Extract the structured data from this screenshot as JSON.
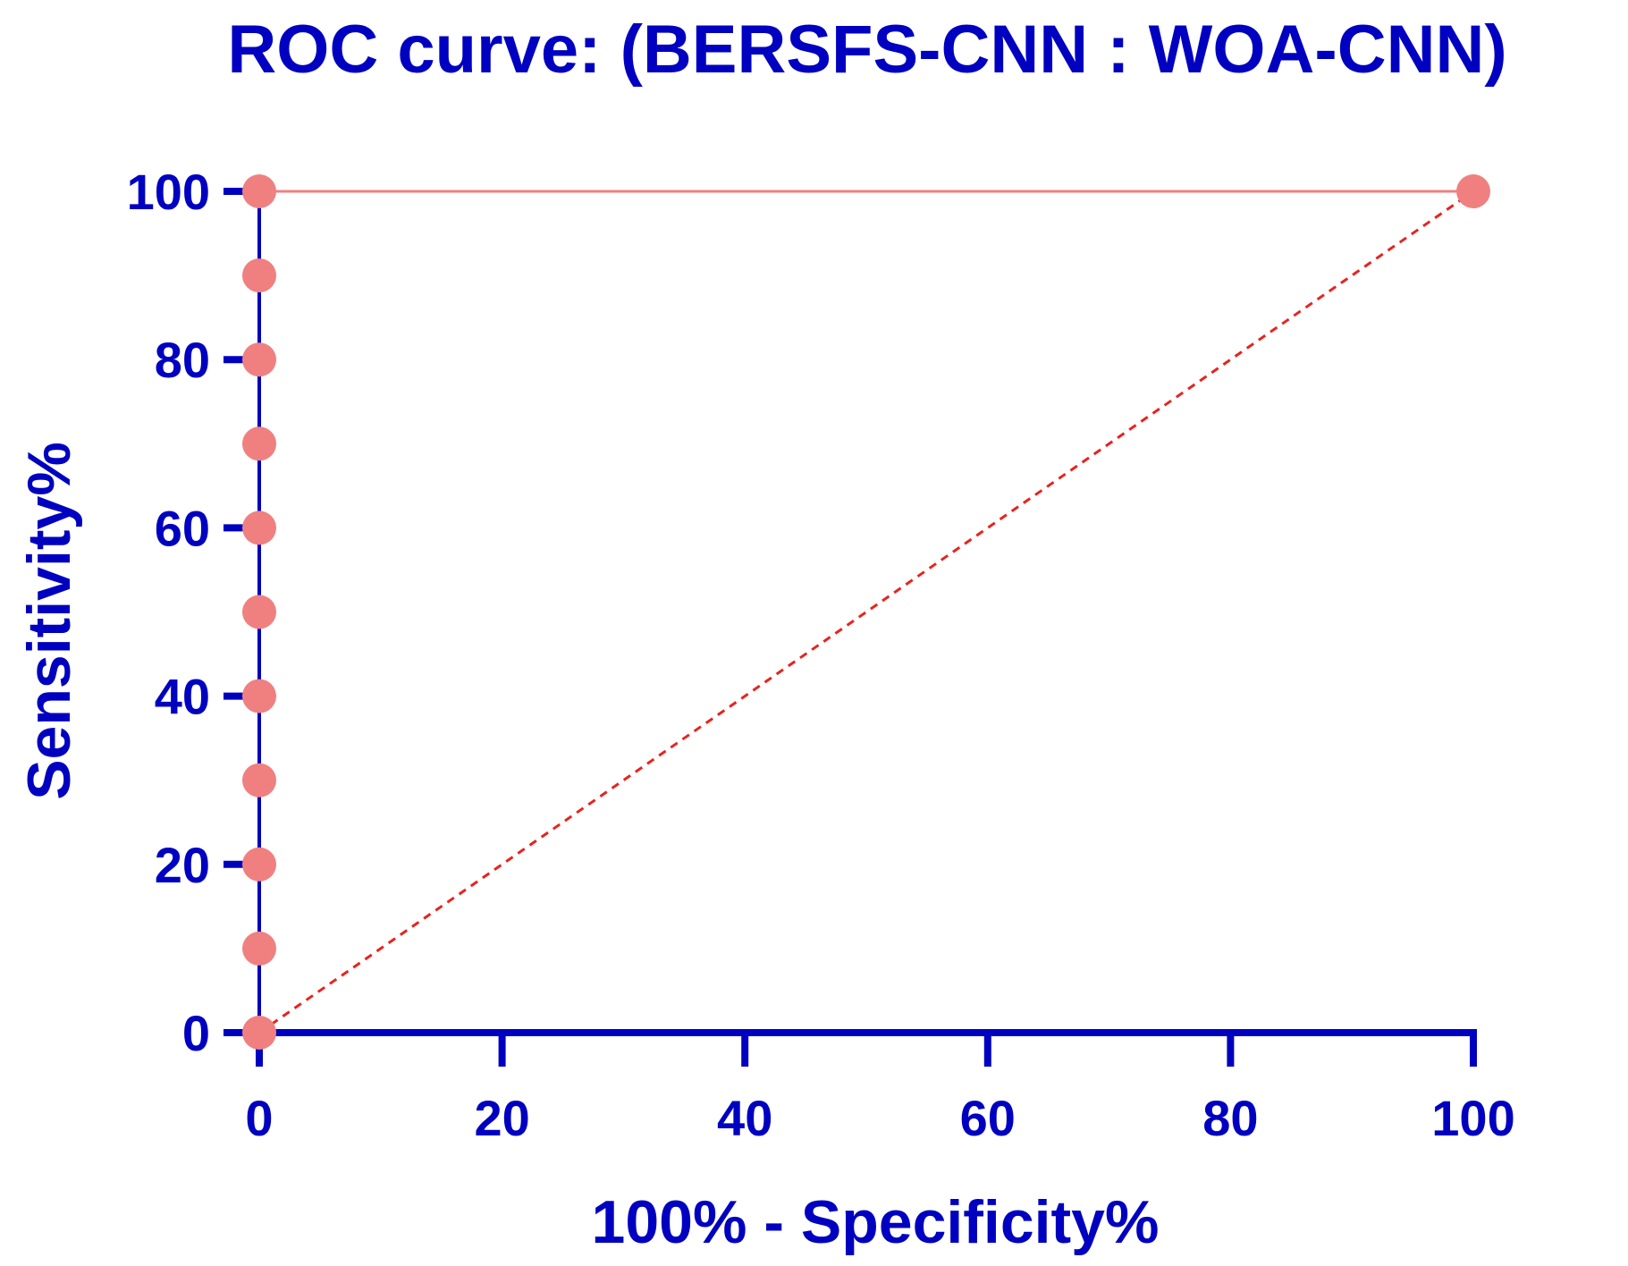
{
  "chart_data": {
    "type": "line",
    "title": "ROC curve: (BERSFS-CNN : WOA-CNN)",
    "xlabel": "100% - Specificity%",
    "ylabel": "Sensitivity%",
    "xlim": [
      0,
      100
    ],
    "ylim": [
      0,
      100
    ],
    "xticks": [
      "0",
      "20",
      "40",
      "60",
      "80",
      "100"
    ],
    "yticks": [
      "0",
      "20",
      "40",
      "60",
      "80",
      "100"
    ],
    "grid": false,
    "series": [
      {
        "x": [
          0,
          0,
          0,
          0,
          0,
          0,
          0,
          0,
          0,
          0,
          0,
          100
        ],
        "y": [
          0,
          10,
          20,
          30,
          40,
          50,
          60,
          70,
          80,
          90,
          100,
          100
        ],
        "color": "#f08080",
        "style": "solid",
        "markers": true
      },
      {
        "x": [
          0,
          100
        ],
        "y": [
          0,
          100
        ],
        "color": "#e8231f",
        "style": "dashed",
        "markers": false
      }
    ]
  },
  "colors": {
    "axis": "#0000c0",
    "text": "#0000c0",
    "curve": "#f08080",
    "reference": "#e8231f"
  }
}
